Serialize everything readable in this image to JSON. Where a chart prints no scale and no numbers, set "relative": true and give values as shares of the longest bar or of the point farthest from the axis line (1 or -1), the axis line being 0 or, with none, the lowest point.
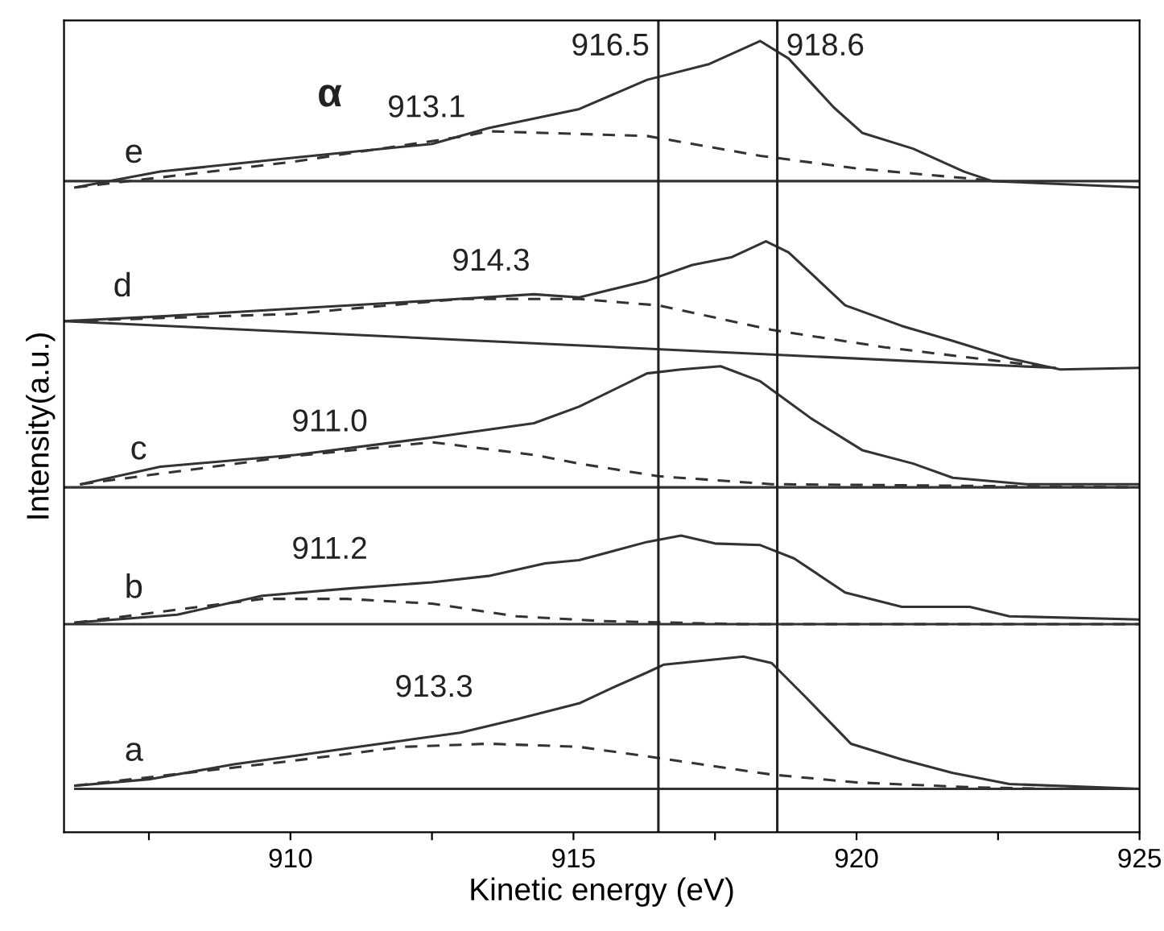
{
  "chart_data": {
    "type": "line",
    "relative": true,
    "xlabel": "Kinetic energy (eV)",
    "ylabel": "Intensity(a.u.)",
    "xlim": [
      906,
      925
    ],
    "xticks": [
      {
        "value": 907.5,
        "label": null
      },
      910,
      {
        "value": 912.5,
        "label": null
      },
      915,
      {
        "value": 917.5,
        "label": null
      },
      920,
      {
        "value": 922.5,
        "label": null
      },
      925
    ],
    "tick_labels": "x",
    "grid": false,
    "legend": false,
    "marker": "none",
    "series": [
      {
        "name": "a",
        "color": "#333333",
        "line_style": "solid",
        "x": [
          906.2,
          907.5,
          909,
          910,
          911,
          912,
          913,
          914,
          915.1,
          915.7,
          916.3,
          916.6,
          918.0,
          918.5,
          919.1,
          919.9,
          920.8,
          921.7,
          922.7,
          925
        ],
        "values": [
          0.059,
          0.067,
          0.086,
          0.096,
          0.106,
          0.116,
          0.126,
          0.143,
          0.163,
          0.183,
          0.202,
          0.212,
          0.222,
          0.214,
          0.171,
          0.112,
          0.092,
          0.075,
          0.061,
          0.055
        ]
      },
      {
        "color": "#333333",
        "line_style": "dashed",
        "x": [
          906.2,
          910,
          912,
          913.5,
          915.1,
          916.3,
          918.5,
          920,
          922,
          923.5
        ],
        "values": [
          0.059,
          0.09,
          0.108,
          0.112,
          0.108,
          0.096,
          0.073,
          0.063,
          0.057,
          0.055
        ]
      },
      {
        "color": "#333333",
        "line_style": "solid",
        "x": [
          906.2,
          925
        ],
        "values": [
          0.055,
          0.055
        ]
      },
      {
        "name": "b",
        "color": "#333333",
        "line_style": "solid",
        "x": [
          906.2,
          908,
          909.5,
          911,
          912.5,
          913.5,
          914.5,
          915.1,
          916.3,
          916.9,
          917.5,
          918.3,
          918.9,
          919.8,
          920.8,
          922.0,
          922.7,
          925
        ],
        "values": [
          0.265,
          0.275,
          0.299,
          0.308,
          0.316,
          0.324,
          0.34,
          0.344,
          0.367,
          0.375,
          0.365,
          0.363,
          0.346,
          0.303,
          0.285,
          0.285,
          0.273,
          0.269
        ]
      },
      {
        "color": "#333333",
        "line_style": "dashed",
        "x": [
          906.2,
          909.5,
          911,
          912.5,
          914,
          915.5,
          918,
          925
        ],
        "values": [
          0.265,
          0.295,
          0.295,
          0.289,
          0.273,
          0.267,
          0.263,
          0.263
        ]
      },
      {
        "color": "#333333",
        "line_style": "solid",
        "x": [
          906,
          925
        ],
        "values": [
          0.263,
          0.263
        ]
      },
      {
        "name": "c",
        "color": "#333333",
        "line_style": "solid",
        "x": [
          906.3,
          907.7,
          910.1,
          912.5,
          914.3,
          915.1,
          916.3,
          916.9,
          917.6,
          918.3,
          919.2,
          920.1,
          921.0,
          921.7,
          923,
          925
        ],
        "values": [
          0.44,
          0.462,
          0.477,
          0.499,
          0.517,
          0.538,
          0.58,
          0.585,
          0.589,
          0.57,
          0.523,
          0.483,
          0.466,
          0.448,
          0.44,
          0.44
        ]
      },
      {
        "color": "#333333",
        "line_style": "dashed",
        "x": [
          906.3,
          910,
          912.5,
          914.3,
          915.1,
          916.5,
          918.5,
          925
        ],
        "values": [
          0.44,
          0.475,
          0.493,
          0.477,
          0.466,
          0.45,
          0.44,
          0.436
        ]
      },
      {
        "color": "#333333",
        "line_style": "solid",
        "x": [
          906,
          925
        ],
        "values": [
          0.436,
          0.436
        ]
      },
      {
        "name": "d",
        "color": "#333333",
        "line_style": "solid",
        "x": [
          906.0,
          907.7,
          910.1,
          912.5,
          914.3,
          915.1,
          916.3,
          917.1,
          917.8,
          918.4,
          918.8,
          919.8,
          920.8,
          921.7,
          922.7,
          923.6,
          925
        ],
        "values": [
          0.646,
          0.652,
          0.662,
          0.672,
          0.68,
          0.676,
          0.697,
          0.717,
          0.727,
          0.747,
          0.733,
          0.666,
          0.64,
          0.621,
          0.599,
          0.585,
          0.587
        ]
      },
      {
        "color": "#333333",
        "line_style": "dashed",
        "x": [
          906,
          910,
          913,
          915.1,
          916.5,
          918.5,
          920.5,
          923.5
        ],
        "values": [
          0.646,
          0.655,
          0.674,
          0.674,
          0.666,
          0.635,
          0.613,
          0.587
        ]
      },
      {
        "color": "#333333",
        "line_style": "solid",
        "x": [
          906,
          923.5
        ],
        "values": [
          0.646,
          0.587
        ]
      },
      {
        "name": "e",
        "color": "#333333",
        "line_style": "solid",
        "x": [
          906.2,
          907.7,
          910.1,
          912.5,
          913.5,
          915.1,
          916.3,
          917.4,
          918.3,
          918.8,
          919.6,
          920.1,
          921.0,
          921.9,
          922.4,
          925
        ],
        "values": [
          0.815,
          0.835,
          0.853,
          0.87,
          0.89,
          0.914,
          0.951,
          0.971,
          1.0,
          0.978,
          0.916,
          0.884,
          0.864,
          0.835,
          0.823,
          0.815
        ]
      },
      {
        "color": "#333333",
        "line_style": "dashed",
        "x": [
          906.2,
          910,
          913.1,
          913.5,
          916.3,
          918.3,
          920,
          922.5
        ],
        "values": [
          0.815,
          0.847,
          0.88,
          0.886,
          0.88,
          0.855,
          0.839,
          0.823
        ]
      },
      {
        "color": "#333333",
        "line_style": "solid",
        "x": [
          906,
          925
        ],
        "values": [
          0.823,
          0.823
        ]
      }
    ],
    "ref_lines": [
      {
        "axis": "x",
        "value": 916.5,
        "label": "916.5",
        "color": "#222222"
      },
      {
        "axis": "x",
        "value": 918.6,
        "label": "918.6",
        "color": "#222222"
      }
    ],
    "annotations": [
      "α",
      "913.1",
      "914.3",
      "911.0",
      "911.2",
      "913.3"
    ]
  }
}
